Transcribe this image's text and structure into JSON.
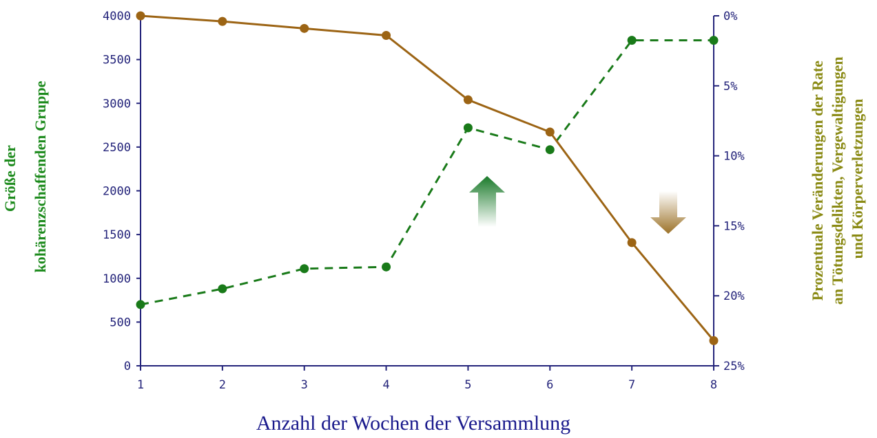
{
  "chart_data": {
    "type": "line",
    "xlabel": "Anzahl der Wochen der Versammlung",
    "ylabel_left_lines": [
      "Größe der",
      "kohärenzschaffenden Gruppe"
    ],
    "ylabel_right_lines": [
      "Prozentuale Veränderungen der Rate",
      "an Tötungsdelikten, Vergewaltigungen",
      "und Körperverletzungen"
    ],
    "x": [
      1,
      2,
      3,
      4,
      5,
      6,
      7,
      8
    ],
    "x_tick_labels": [
      "1",
      "2",
      "3",
      "4",
      "5",
      "6",
      "7",
      "8"
    ],
    "y_left_ticks": [
      "0",
      "500",
      "1000",
      "1500",
      "2000",
      "2500",
      "3000",
      "3500",
      "4000"
    ],
    "y_right_ticks": [
      "0%",
      "5%",
      "10%",
      "15%",
      "20%",
      "25%"
    ],
    "ylim_left": [
      0,
      4000
    ],
    "ylim_right": [
      0,
      25
    ],
    "right_axis_inverted": true,
    "series": [
      {
        "axis": "left",
        "style": "dashed",
        "color": "#197a19",
        "values": [
          700,
          880,
          1110,
          1130,
          2720,
          2470,
          3720,
          3720
        ]
      },
      {
        "axis": "right",
        "style": "solid",
        "color": "#9c6414",
        "values": [
          0,
          0.4,
          0.9,
          1.4,
          6.0,
          8.3,
          16.2,
          23.2
        ]
      }
    ],
    "indicators": [
      {
        "direction": "up",
        "color": "#1a7a2a"
      },
      {
        "direction": "down",
        "color": "#9c7228"
      }
    ],
    "grid": false
  }
}
